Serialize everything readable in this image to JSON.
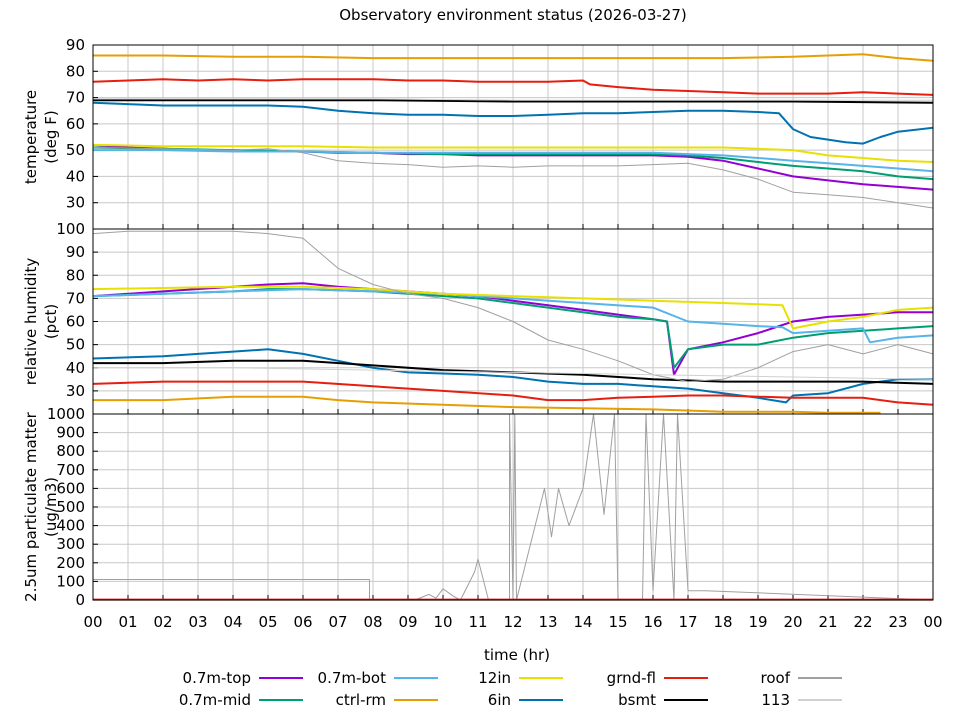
{
  "chart_data": {
    "type": "line",
    "title": "Observatory environment status (2026-03-27)",
    "xlabel": "time (hr)",
    "x_ticks": [
      "00",
      "01",
      "02",
      "03",
      "04",
      "05",
      "06",
      "07",
      "08",
      "09",
      "10",
      "11",
      "12",
      "13",
      "14",
      "15",
      "16",
      "17",
      "18",
      "19",
      "20",
      "21",
      "22",
      "23",
      "00"
    ],
    "xlim": [
      0,
      24
    ],
    "grid": true,
    "legend_position": "bottom",
    "panels": [
      {
        "ylabel_line1": "temperature",
        "ylabel_line2": "(deg F)",
        "ylim": [
          20,
          90
        ],
        "y_ticks": [
          30,
          40,
          50,
          60,
          70,
          80,
          90
        ],
        "series": [
          {
            "name": "0.7m-top",
            "x": [
              0,
              1,
              2,
              3,
              4,
              5,
              6,
              7,
              8,
              9,
              10,
              11,
              12,
              13,
              14,
              15,
              16,
              17,
              18,
              19,
              20,
              21,
              22,
              23,
              24
            ],
            "y": [
              52,
              51,
              50.5,
              50,
              50,
              49.5,
              49.5,
              49,
              49,
              48.5,
              48.5,
              48,
              48,
              48,
              48,
              48,
              48,
              47.5,
              46,
              43,
              40,
              38.5,
              37,
              36,
              35
            ]
          },
          {
            "name": "0.7m-mid",
            "x": [
              0,
              2,
              4,
              6,
              8,
              10,
              12,
              14,
              16,
              17,
              18,
              19,
              20,
              21,
              22,
              23,
              24
            ],
            "y": [
              51,
              50.5,
              50,
              49.5,
              49,
              48.5,
              48.5,
              48.5,
              48.5,
              48,
              47,
              45.5,
              44,
              43,
              42,
              40,
              39
            ]
          },
          {
            "name": "0.7m-bot",
            "x": [
              0,
              2,
              4,
              6,
              8,
              10,
              12,
              14,
              16,
              17,
              18,
              19,
              20,
              21,
              22,
              23,
              24
            ],
            "y": [
              50,
              50,
              49.5,
              49.5,
              49,
              49,
              49,
              49,
              49,
              48.5,
              48,
              47,
              46,
              45,
              44,
              43,
              42
            ]
          },
          {
            "name": "ctrl-rm",
            "x": [
              0,
              2,
              4,
              6,
              8,
              10,
              12,
              14,
              16,
              18,
              20,
              21,
              22,
              23,
              24
            ],
            "y": [
              86,
              86,
              85.5,
              85.5,
              85,
              85,
              85,
              85,
              85,
              85,
              85.5,
              86,
              86.5,
              85,
              84
            ]
          },
          {
            "name": "12in",
            "x": [
              0,
              2,
              4,
              6,
              8,
              10,
              12,
              14,
              16,
              18,
              19,
              20,
              21,
              22,
              23,
              24
            ],
            "y": [
              52,
              51.5,
              51.5,
              51.5,
              51,
              51,
              51,
              51,
              51,
              51,
              50.5,
              50,
              48,
              47,
              46,
              45.5
            ]
          },
          {
            "name": "6in",
            "x": [
              0,
              1,
              2,
              3,
              4,
              5,
              6,
              7,
              8,
              9,
              10,
              11,
              12,
              13,
              14,
              15,
              16,
              17,
              18,
              19,
              19.6,
              20,
              20.5,
              21,
              21.5,
              22,
              22.5,
              23,
              24
            ],
            "y": [
              68,
              67.5,
              67,
              67,
              67,
              67,
              66.5,
              65,
              64,
              63.5,
              63.5,
              63,
              63,
              63.5,
              64,
              64,
              64.5,
              65,
              65,
              64.5,
              64,
              58,
              55,
              54,
              53,
              52.5,
              55,
              57,
              58.5
            ]
          },
          {
            "name": "grnd-fl",
            "x": [
              0,
              1,
              2,
              3,
              4,
              5,
              6,
              7,
              8,
              9,
              10,
              11,
              12,
              13,
              14,
              14.2,
              15,
              16,
              17,
              18,
              19,
              20,
              21,
              22,
              23,
              24
            ],
            "y": [
              76,
              76.5,
              77,
              76.5,
              77,
              76.5,
              77,
              77,
              77,
              76.5,
              76.5,
              76,
              76,
              76,
              76.5,
              75,
              74,
              73,
              72.5,
              72,
              71.5,
              71.5,
              71.5,
              72,
              71.5,
              71
            ]
          },
          {
            "name": "bsmt",
            "x": [
              0,
              4,
              8,
              12,
              16,
              20,
              24
            ],
            "y": [
              69,
              69,
              69,
              68.5,
              68.5,
              68.5,
              68
            ]
          },
          {
            "name": "roof",
            "x": [
              0,
              2,
              4,
              5,
              6,
              7,
              8,
              9,
              10,
              11,
              12,
              13,
              14,
              15,
              16,
              17,
              18,
              19,
              20,
              21,
              22,
              23,
              24
            ],
            "y": [
              51,
              50.5,
              50,
              50.5,
              49,
              46,
              45,
              44.5,
              43.5,
              44,
              43.5,
              44,
              44,
              44,
              44.5,
              45,
              42.5,
              39,
              34,
              33,
              32,
              30,
              28
            ]
          },
          {
            "name": "113",
            "x": [
              0,
              4,
              8,
              12,
              16,
              20,
              24
            ],
            "y": [
              69.5,
              69.5,
              69.5,
              69,
              69,
              69,
              69
            ]
          }
        ]
      },
      {
        "ylabel_line1": "relative humidity",
        "ylabel_line2": "(pct)",
        "ylim": [
          20,
          100
        ],
        "y_ticks": [
          30,
          40,
          50,
          60,
          70,
          80,
          90,
          100
        ],
        "series": [
          {
            "name": "0.7m-top",
            "x": [
              0,
              2,
              4,
              5,
              6,
              7,
              8,
              9,
              10,
              11,
              12,
              13,
              14,
              15,
              16,
              16.4,
              16.6,
              17,
              18,
              19,
              20,
              21,
              22,
              23,
              24
            ],
            "y": [
              71,
              73,
              75,
              76,
              76.5,
              75,
              74,
              73,
              72,
              71,
              69,
              67,
              65,
              63,
              61,
              60,
              37,
              48,
              51,
              55,
              60,
              62,
              63,
              64,
              64
            ]
          },
          {
            "name": "0.7m-mid",
            "x": [
              0,
              2,
              4,
              5,
              6,
              7,
              8,
              9,
              10,
              11,
              12,
              13,
              14,
              15,
              16,
              16.4,
              16.6,
              17,
              18,
              19,
              20,
              21,
              22,
              23,
              24
            ],
            "y": [
              71,
              72,
              73,
              74,
              74,
              73.5,
              73,
              72,
              71,
              70,
              68,
              66,
              64,
              62,
              61,
              60,
              40,
              48,
              50,
              50,
              53,
              55,
              56,
              57,
              58
            ]
          },
          {
            "name": "0.7m-bot",
            "x": [
              0,
              2,
              4,
              6,
              8,
              10,
              12,
              14,
              16,
              17,
              18,
              19,
              19.7,
              20,
              21,
              22,
              22.2,
              23,
              24
            ],
            "y": [
              71,
              72,
              73,
              74,
              73,
              72,
              70,
              68,
              66,
              60,
              59,
              58,
              57.5,
              55,
              56,
              57,
              51,
              53,
              54
            ]
          },
          {
            "name": "ctrl-rm",
            "x": [
              0,
              2,
              4,
              6,
              7,
              8,
              10,
              12,
              14,
              16,
              18,
              20,
              21,
              22,
              22.5
            ],
            "y": [
              26,
              26,
              27.5,
              27.5,
              26,
              25,
              24,
              23,
              22.5,
              22,
              21,
              21,
              20.5,
              20.5,
              20.5
            ]
          },
          {
            "name": "12in",
            "x": [
              0,
              2,
              4,
              6,
              8,
              10,
              12,
              14,
              16,
              18,
              19,
              19.7,
              20,
              21,
              22,
              23,
              24
            ],
            "y": [
              74,
              74.5,
              75,
              75,
              74,
              72,
              71,
              70,
              69,
              68,
              67.5,
              67,
              57,
              60,
              62,
              65,
              66
            ]
          },
          {
            "name": "6in",
            "x": [
              0,
              2,
              3,
              4,
              5,
              6,
              7,
              8,
              9,
              10,
              11,
              12,
              13,
              14,
              15,
              16,
              17,
              18,
              19,
              19.8,
              20,
              21,
              22,
              23,
              24
            ],
            "y": [
              44,
              45,
              46,
              47,
              48,
              46,
              43,
              40,
              38,
              37.5,
              37,
              36,
              34,
              33,
              33,
              32,
              31,
              29,
              27,
              25,
              28,
              29,
              33,
              35,
              35
            ]
          },
          {
            "name": "grnd-fl",
            "x": [
              0,
              2,
              4,
              6,
              8,
              10,
              12,
              13,
              14,
              15,
              16,
              17,
              18,
              20,
              22,
              23,
              24
            ],
            "y": [
              33,
              34,
              34,
              34,
              32,
              30,
              28,
              26,
              26,
              27,
              27.5,
              28,
              28,
              27,
              27,
              25,
              24
            ]
          },
          {
            "name": "bsmt",
            "x": [
              0,
              2,
              4,
              6,
              8,
              10,
              12,
              14,
              16,
              18,
              20,
              22,
              24
            ],
            "y": [
              42,
              42,
              43,
              43,
              41,
              39,
              38,
              37,
              35,
              34,
              34,
              34,
              33
            ]
          },
          {
            "name": "roof",
            "x": [
              0,
              1,
              2,
              3,
              4,
              5,
              6,
              7,
              8,
              9,
              10,
              11,
              12,
              13,
              14,
              15,
              16,
              17,
              18,
              19,
              20,
              21,
              22,
              23,
              24
            ],
            "y": [
              98,
              99,
              99,
              99,
              99,
              98,
              96,
              83,
              76,
              72,
              70,
              66,
              60,
              52,
              48,
              43,
              37,
              34,
              35,
              40,
              47,
              50,
              46,
              50,
              46
            ]
          },
          {
            "name": "113",
            "x": [
              0,
              4,
              8,
              12,
              16,
              20,
              24
            ],
            "y": [
              40,
              40,
              39,
              38,
              37,
              36,
              35
            ]
          }
        ]
      },
      {
        "ylabel_line1": "2.5um particulate matter",
        "ylabel_line2": "(ug/m3)",
        "ylim": [
          0,
          1000
        ],
        "y_ticks": [
          0,
          100,
          200,
          300,
          400,
          500,
          600,
          700,
          800,
          900,
          1000
        ],
        "series": [
          {
            "name": "roof",
            "x": [
              0,
              7.9,
              7.9,
              9.2,
              9.6,
              9.8,
              10,
              10.3,
              10.5,
              10.9,
              11,
              11.3,
              11.9,
              11.9,
              12,
              12.05,
              12.1,
              12.9,
              13.1,
              13.3,
              13.6,
              14,
              14.3,
              14.6,
              14.9,
              15,
              15.7,
              15.8,
              16,
              16.3,
              16.6,
              16.7,
              17,
              17.5,
              24
            ],
            "y": [
              110,
              110,
              0,
              0,
              30,
              10,
              60,
              20,
              0,
              150,
              220,
              0,
              0,
              1000,
              0,
              1000,
              0,
              600,
              340,
              600,
              400,
              600,
              1000,
              460,
              1000,
              0,
              0,
              1000,
              50,
              1000,
              0,
              1000,
              50,
              50,
              0
            ]
          },
          {
            "name": "grnd-fl",
            "x": [
              0,
              24
            ],
            "y": [
              2,
              2
            ]
          }
        ]
      }
    ],
    "legend": [
      {
        "name": "0.7m-top",
        "color": "#9400d3"
      },
      {
        "name": "0.7m-bot",
        "color": "#56b4e9"
      },
      {
        "name": "12in",
        "color": "#e8e000"
      },
      {
        "name": "grnd-fl",
        "color": "#e51e10"
      },
      {
        "name": "roof",
        "color": "#a0a0a0"
      },
      {
        "name": "0.7m-mid",
        "color": "#009e73"
      },
      {
        "name": "ctrl-rm",
        "color": "#e69f00"
      },
      {
        "name": "6in",
        "color": "#0072b2"
      },
      {
        "name": "bsmt",
        "color": "#000000"
      },
      {
        "name": "113",
        "color": "#d0d0d0"
      }
    ]
  }
}
